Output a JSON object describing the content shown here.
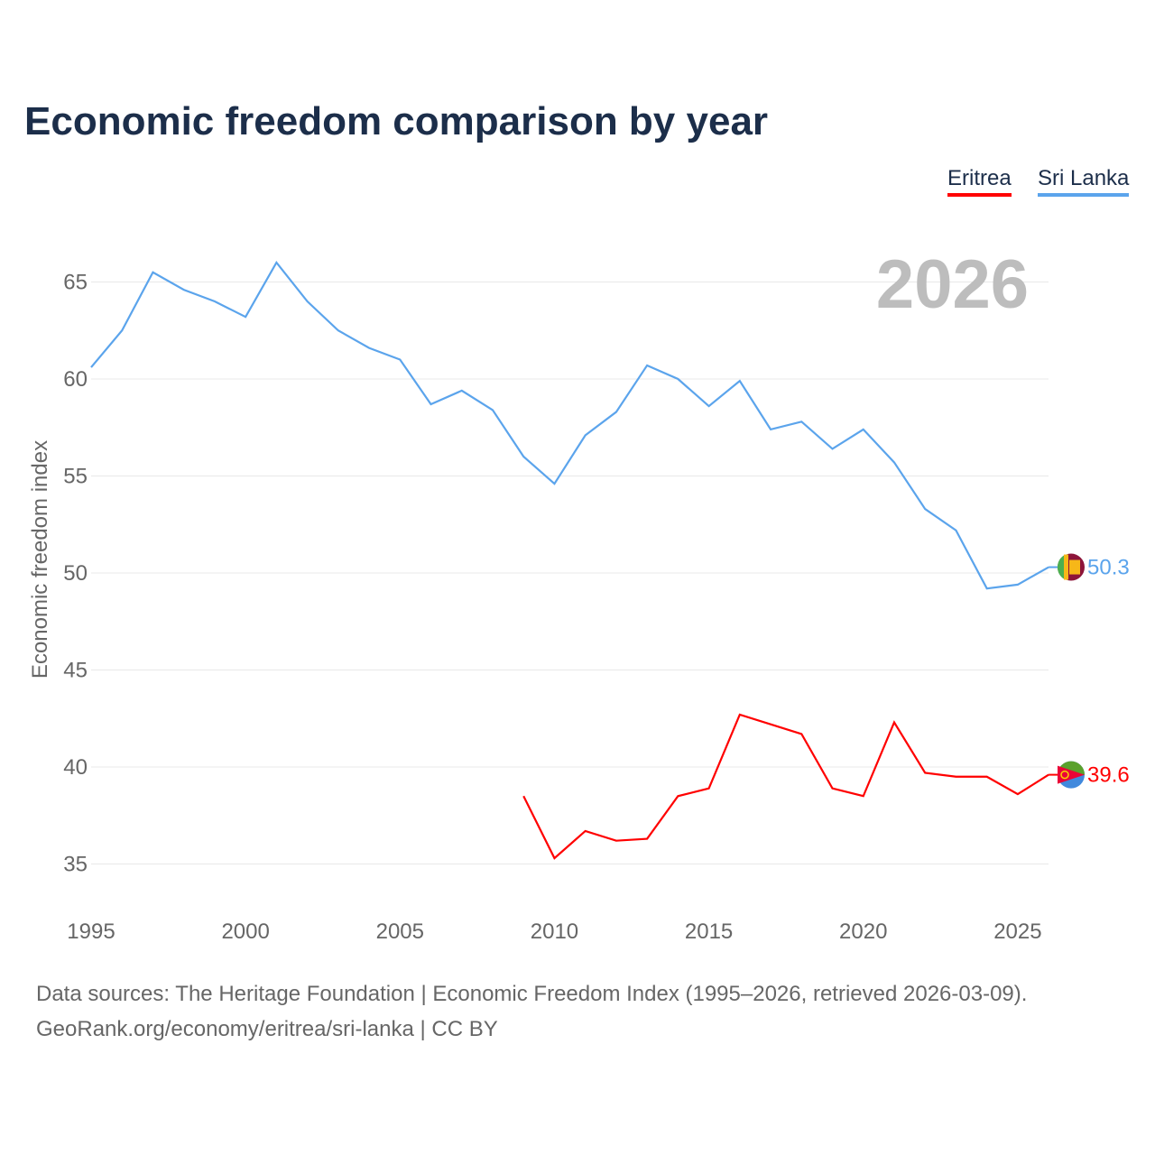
{
  "chart_data": {
    "type": "line",
    "title": "Economic freedom comparison by year",
    "xlabel": "",
    "ylabel": "Economic freedom index",
    "xlim": [
      1995,
      2026
    ],
    "ylim": [
      33,
      67
    ],
    "x_ticks": [
      1995,
      2000,
      2005,
      2010,
      2015,
      2020,
      2025
    ],
    "y_ticks": [
      35,
      40,
      45,
      50,
      55,
      60,
      65
    ],
    "grid": true,
    "legend_position": "top-right",
    "current_year_label": "2026",
    "series": [
      {
        "name": "Eritrea",
        "color": "#ff0000",
        "end_label": "39.6",
        "x": [
          2009,
          2010,
          2011,
          2012,
          2013,
          2014,
          2015,
          2016,
          2017,
          2018,
          2019,
          2020,
          2021,
          2022,
          2023,
          2024,
          2025,
          2026
        ],
        "values": [
          38.5,
          35.3,
          36.7,
          36.2,
          36.3,
          38.5,
          38.9,
          42.7,
          42.2,
          41.7,
          38.9,
          38.5,
          42.3,
          39.7,
          39.5,
          39.5,
          38.6,
          39.6
        ]
      },
      {
        "name": "Sri Lanka",
        "color": "#5ba4ec",
        "end_label": "50.3",
        "x": [
          1995,
          1996,
          1997,
          1998,
          1999,
          2000,
          2001,
          2002,
          2003,
          2004,
          2005,
          2006,
          2007,
          2008,
          2009,
          2010,
          2011,
          2012,
          2013,
          2014,
          2015,
          2016,
          2017,
          2018,
          2019,
          2020,
          2021,
          2022,
          2023,
          2024,
          2025,
          2026
        ],
        "values": [
          60.6,
          62.5,
          65.5,
          64.6,
          64.0,
          63.2,
          66.0,
          64.0,
          62.5,
          61.6,
          61.0,
          58.7,
          59.4,
          58.4,
          56.0,
          54.6,
          57.1,
          58.3,
          60.7,
          60.0,
          58.6,
          59.9,
          57.4,
          57.8,
          56.4,
          57.4,
          55.7,
          53.3,
          52.2,
          49.2,
          49.4,
          50.3
        ]
      }
    ]
  },
  "footer": {
    "line1": "Data sources: The Heritage Foundation | Economic Freedom Index (1995–2026, retrieved 2026-03-09).",
    "line2": "GeoRank.org/economy/eritrea/sri-lanka | CC BY"
  }
}
